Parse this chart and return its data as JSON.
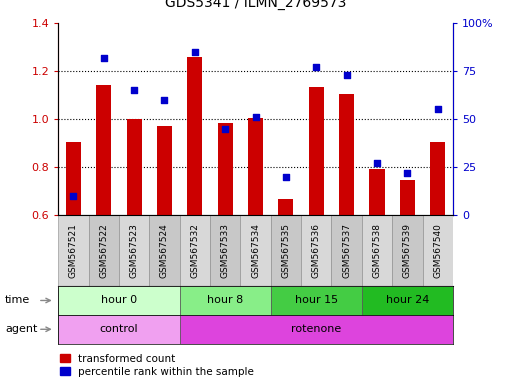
{
  "title": "GDS5341 / ILMN_2769573",
  "samples": [
    "GSM567521",
    "GSM567522",
    "GSM567523",
    "GSM567524",
    "GSM567532",
    "GSM567533",
    "GSM567534",
    "GSM567535",
    "GSM567536",
    "GSM567537",
    "GSM567538",
    "GSM567539",
    "GSM567540"
  ],
  "transformed_count": [
    0.905,
    1.14,
    1.0,
    0.97,
    1.26,
    0.985,
    1.005,
    0.665,
    1.135,
    1.105,
    0.79,
    0.745,
    0.905
  ],
  "percentile_rank": [
    10,
    82,
    65,
    60,
    85,
    45,
    51,
    20,
    77,
    73,
    27,
    22,
    55
  ],
  "ylim_left": [
    0.6,
    1.4
  ],
  "ylim_right": [
    0,
    100
  ],
  "yticks_left": [
    0.6,
    0.8,
    1.0,
    1.2,
    1.4
  ],
  "yticks_right": [
    0,
    25,
    50,
    75,
    100
  ],
  "yticklabels_right": [
    "0",
    "25",
    "50",
    "75",
    "100%"
  ],
  "bar_color": "#cc0000",
  "dot_color": "#0000cc",
  "bar_bottom": 0.6,
  "groups": [
    {
      "label": "hour 0",
      "start": 0,
      "end": 4,
      "color": "#ccffcc"
    },
    {
      "label": "hour 8",
      "start": 4,
      "end": 7,
      "color": "#88ee88"
    },
    {
      "label": "hour 15",
      "start": 7,
      "end": 10,
      "color": "#44cc44"
    },
    {
      "label": "hour 24",
      "start": 10,
      "end": 13,
      "color": "#22bb22"
    }
  ],
  "agents": [
    {
      "label": "control",
      "start": 0,
      "end": 4,
      "color": "#f0a0f0"
    },
    {
      "label": "rotenone",
      "start": 4,
      "end": 13,
      "color": "#dd44dd"
    }
  ],
  "legend_red": "transformed count",
  "legend_blue": "percentile rank within the sample",
  "time_label": "time",
  "agent_label": "agent"
}
